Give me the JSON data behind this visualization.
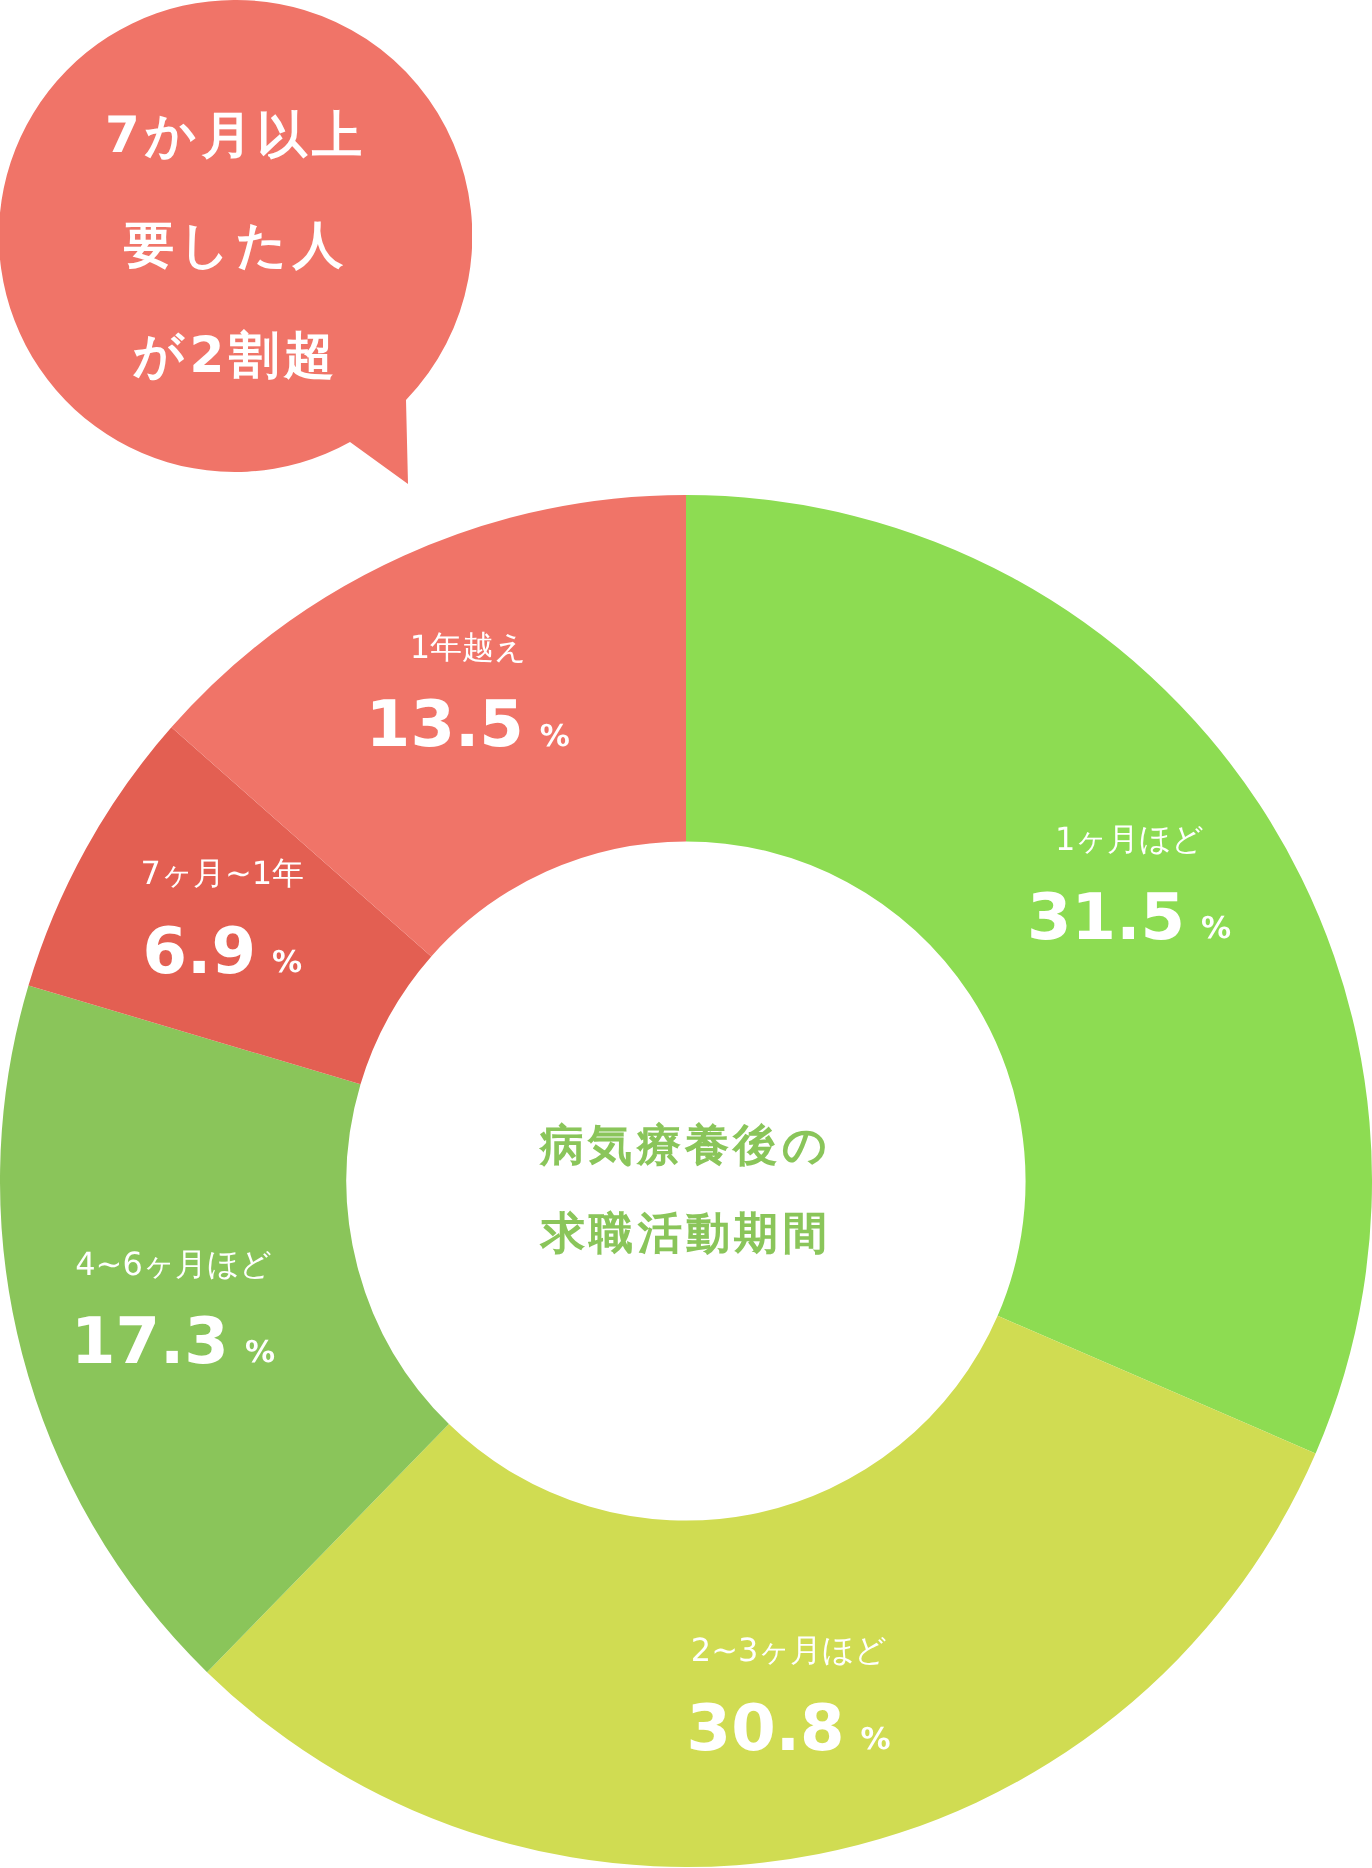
{
  "chart_data": {
    "type": "donut",
    "title": "病気療養後の求職活動期間",
    "categories": [
      "1ヶ月ほど",
      "2~3ヶ月ほど",
      "4~6ヶ月ほど",
      "7ヶ月~1年",
      "1年越え"
    ],
    "values": [
      31.5,
      30.8,
      17.3,
      6.9,
      13.5
    ],
    "colors": [
      "#8ddc52",
      "#d0dc52",
      "#8ac55a",
      "#e35f52",
      "#f07468"
    ],
    "value_labels": [
      "31.5 %",
      "30.8 %",
      "17.3 %",
      "6.9 %",
      "13.5 %"
    ],
    "annotations": [
      "7か月以上要した人が2割超"
    ],
    "legend": false
  }
}
